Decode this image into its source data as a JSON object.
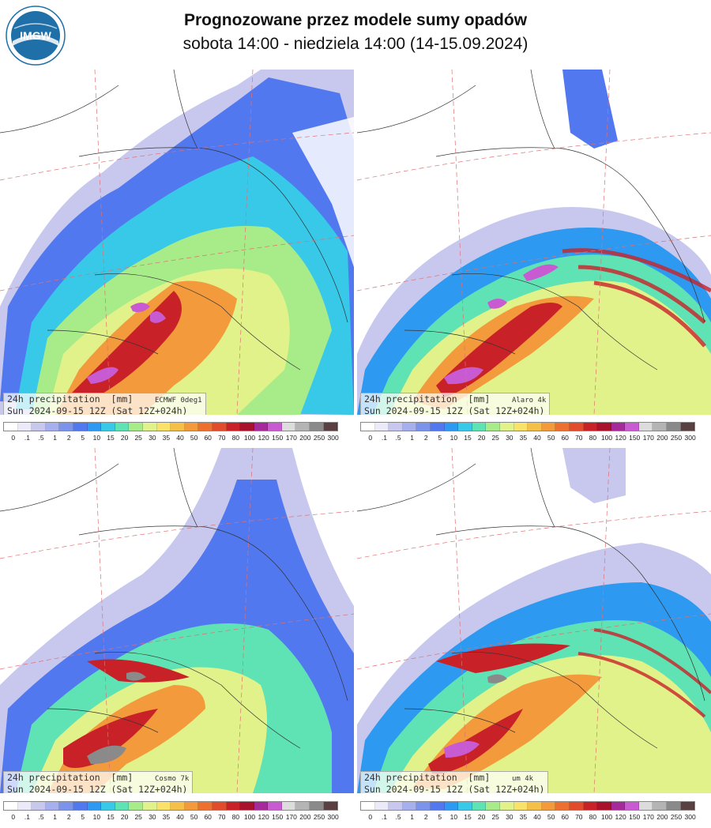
{
  "header": {
    "title": "Prognozowane przez modele sumy opadów",
    "subtitle": "sobota 14:00 - niedziela 14:00 (14-15.09.2024)",
    "logo_text": "IMGW"
  },
  "panels": [
    {
      "id": "ecmwf",
      "line1_left": "24h precipitation  [mm]",
      "model": "ECMWF 0deg1",
      "line2": "Sun 2024-09-15 12Z (Sat 12Z+024h)"
    },
    {
      "id": "alaro",
      "line1_left": "24h precipitation  [mm]",
      "model": "Alaro 4k",
      "line2": "Sun 2024-09-15 12Z (Sat 12Z+024h)"
    },
    {
      "id": "cosmo",
      "line1_left": "24h precipitation  [mm]",
      "model": "Cosmo 7k",
      "line2": "Sun 2024-09-15 12Z (Sat 12Z+024h)"
    },
    {
      "id": "um",
      "line1_left": "24h precipitation  [mm]",
      "model": "um 4k",
      "line2": "Sun 2024-09-15 12Z (Sat 12Z+024h)"
    }
  ],
  "colorscale": {
    "labels": [
      "0",
      ".1",
      ".5",
      "1",
      "2",
      "5",
      "10",
      "15",
      "20",
      "25",
      "30",
      "35",
      "40",
      "50",
      "60",
      "70",
      "80",
      "100",
      "120",
      "150",
      "170",
      "200",
      "250",
      "300"
    ],
    "colors": [
      "#ffffff",
      "#eaeaf8",
      "#c8c8ee",
      "#a7b0ee",
      "#7c93ec",
      "#5278f0",
      "#2e99f0",
      "#38c8e8",
      "#5fe2b4",
      "#a8ec8a",
      "#e2f28a",
      "#fae16a",
      "#f5c04a",
      "#f29a3c",
      "#ee7030",
      "#e24c2c",
      "#c82228",
      "#a8122a",
      "#a52a9a",
      "#c85ad2",
      "#dcdcdc",
      "#b4b4b4",
      "#8a8a8a",
      "#5a4040"
    ]
  }
}
